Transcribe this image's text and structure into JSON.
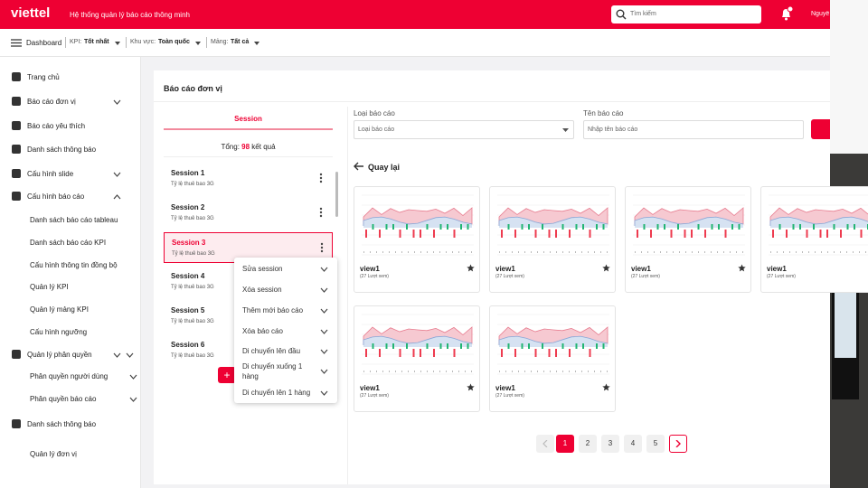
{
  "header": {
    "logo": "viettel",
    "app_title": "Hệ thống quản lý báo cáo thông minh",
    "search_placeholder": "Tìm kiếm",
    "user": "Nguyễ"
  },
  "toolbar": {
    "dashboard": "Dashboard",
    "filters": [
      {
        "label": "KPI:",
        "value": "Tốt nhất"
      },
      {
        "label": "Khu vực:",
        "value": "Toàn quốc"
      },
      {
        "label": "Mảng:",
        "value": "Tất cả"
      }
    ]
  },
  "sidebar": {
    "items": [
      {
        "label": "Trang chủ",
        "level": 0
      },
      {
        "label": "Báo cáo đơn vị",
        "level": 0,
        "expandable": true
      },
      {
        "label": "Báo cáo yêu thích",
        "level": 0
      },
      {
        "label": "Danh sách thông báo",
        "level": 0
      },
      {
        "label": "Cấu hình slide",
        "level": 0,
        "expandable": true
      },
      {
        "label": "Cấu hình báo cáo",
        "level": 0,
        "expandable": true
      },
      {
        "label": "Danh sách báo cáo tableau",
        "level": 1
      },
      {
        "label": "Danh sách báo cáo KPI",
        "level": 1
      },
      {
        "label": "Cấu hình thông tin đồng bộ",
        "level": 1
      },
      {
        "label": "Quản lý KPI",
        "level": 1
      },
      {
        "label": "Quản lý mảng KPI",
        "level": 1
      },
      {
        "label": "Cấu hình ngưỡng",
        "level": 1
      },
      {
        "label": "Quản lý phân quyền",
        "level": 0,
        "expandable": true
      },
      {
        "label": "Phân quyền người dùng",
        "level": 1,
        "expandable": true
      },
      {
        "label": "Phân quyền báo cáo",
        "level": 1,
        "expandable": true
      },
      {
        "label": "Danh sách thông báo",
        "level": 0
      },
      {
        "label": "Quản lý đơn vị",
        "level": 1
      }
    ]
  },
  "panel": {
    "title": "Báo cáo đơn vị",
    "tab": "Session",
    "total_label": "Tổng:",
    "total": 98,
    "total_suffix": "kết quả",
    "selected_session": 2,
    "sessions": [
      {
        "name": "Session 1",
        "subtitle": "Tỷ lệ thuê bao 3G"
      },
      {
        "name": "Session 2",
        "subtitle": "Tỷ lệ thuê bao 3G"
      },
      {
        "name": "Session 3",
        "subtitle": "Tỷ lệ thuê bao 3G"
      },
      {
        "name": "Session 4",
        "subtitle": "Tỷ lệ thuê bao 3G"
      },
      {
        "name": "Session 5",
        "subtitle": "Tỷ lệ thuê bao 3G"
      },
      {
        "name": "Session 6",
        "subtitle": "Tỷ lệ thuê bao 3G"
      }
    ],
    "menu": [
      "Sửa session",
      "Xóa session",
      "Thêm mới báo cáo",
      "Xóa báo cáo",
      "Di chuyển lên đầu",
      "Di chuyển xuống 1 hàng",
      "Di chuyển lên 1 hàng"
    ]
  },
  "filters": {
    "type_label": "Loại báo cáo",
    "type_placeholder": "Loại báo cáo",
    "name_label": "Tên báo cáo",
    "name_placeholder": "Nhập tên báo cáo"
  },
  "back": "Quay lại",
  "cards": [
    {
      "title": "view1",
      "views": "(27 Lượt xem)"
    },
    {
      "title": "view1",
      "views": "(27 Lượt xem)"
    },
    {
      "title": "view1",
      "views": "(27 Lượt xem)"
    },
    {
      "title": "view1",
      "views": "(27 Lượt xem)"
    },
    {
      "title": "view1",
      "views": "(27 Lượt xem)"
    },
    {
      "title": "view1",
      "views": "(27 Lượt xem)"
    }
  ],
  "pagination": {
    "pages": [
      1,
      2,
      3,
      4,
      5
    ],
    "current": 1
  }
}
